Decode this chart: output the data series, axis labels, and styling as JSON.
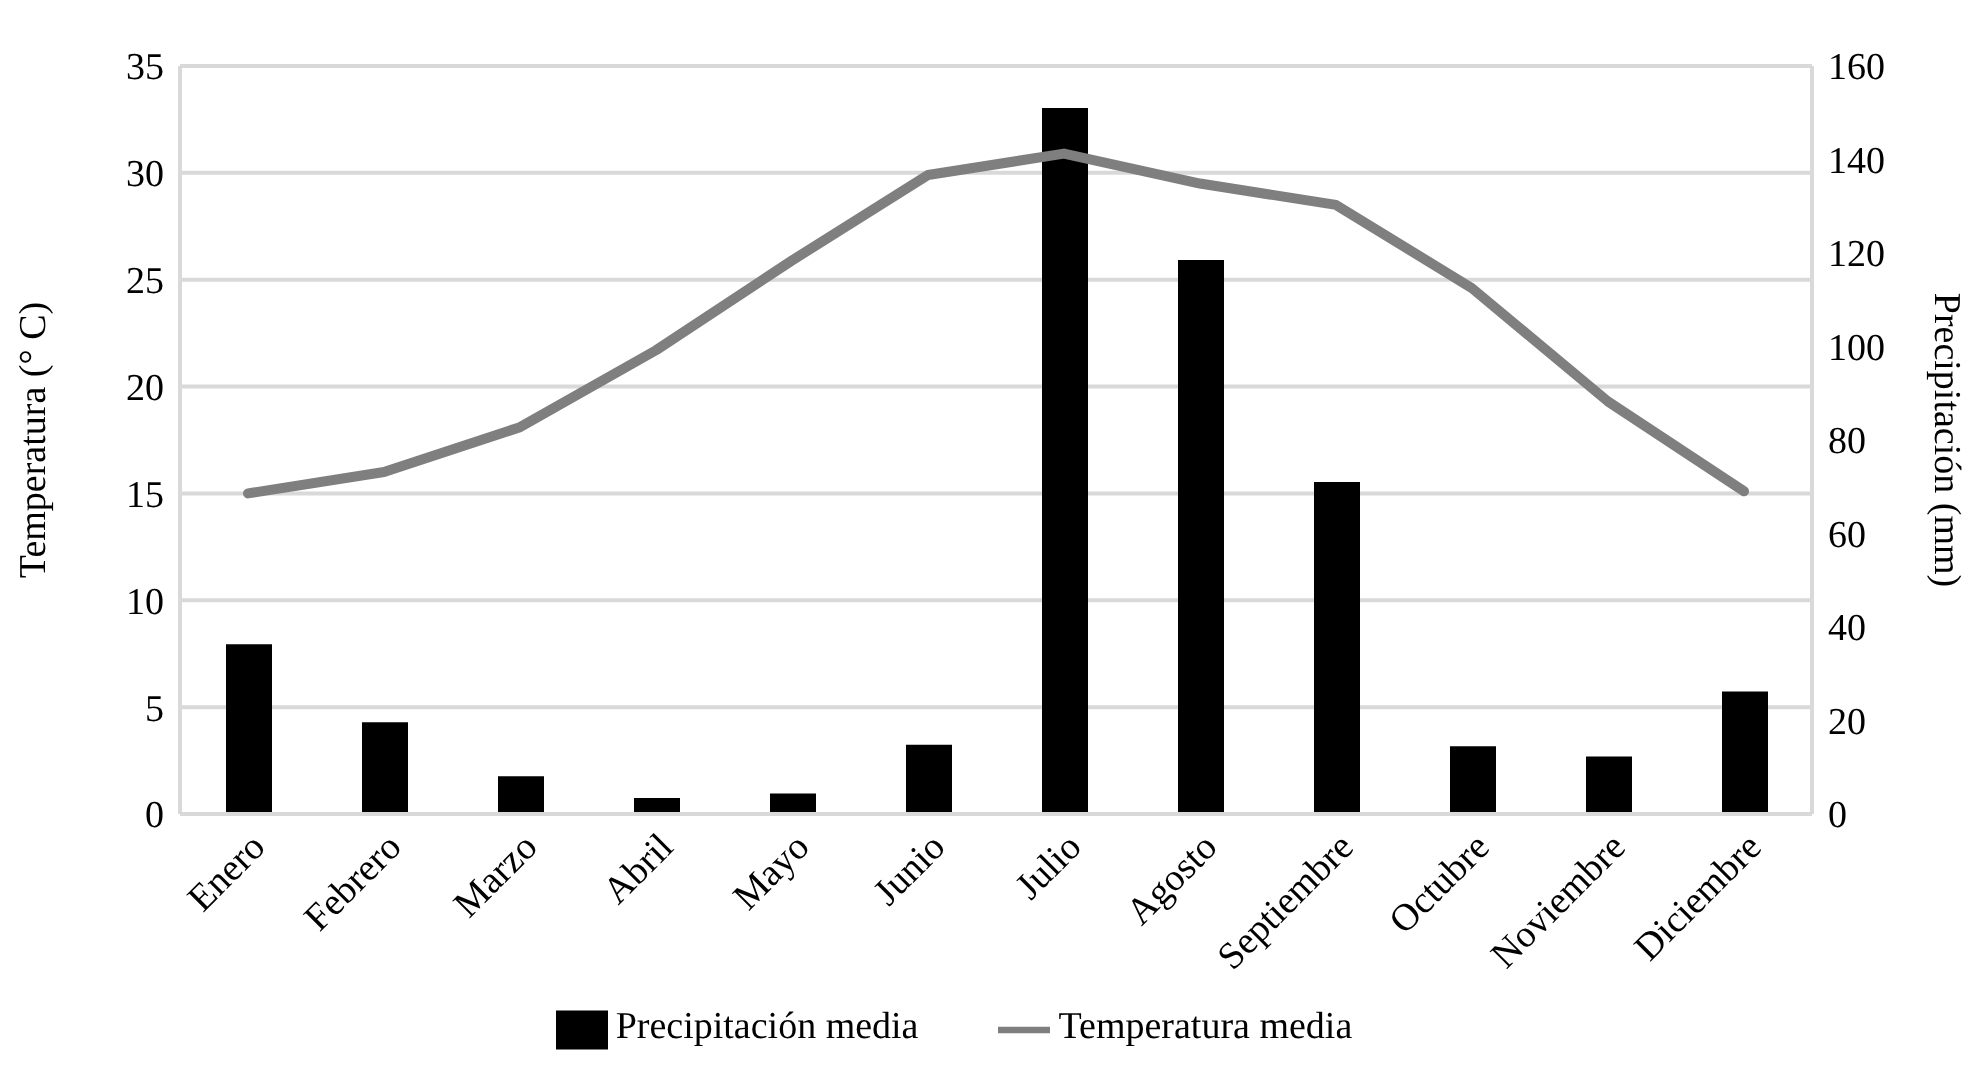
{
  "chart_data": {
    "type": "bar",
    "ylabel": "Temperatura (° C)",
    "y2label": "Precipitación (mm)",
    "categories": [
      "Enero",
      "Febrero",
      "Marzo",
      "Abril",
      "Mayo",
      "Junio",
      "Julio",
      "Agosto",
      "Septiembre",
      "Octubre",
      "Noviembre",
      "Diciembre"
    ],
    "series": [
      {
        "name": "Precipitación media",
        "axis": "y2",
        "color": "#000000",
        "values": [
          36.3,
          19.6,
          8.1,
          3.4,
          4.4,
          14.8,
          151,
          118.5,
          71,
          14.5,
          12.3,
          26.2
        ]
      },
      {
        "name": "Temperatura media",
        "type": "line",
        "color": "#7f7f7f",
        "values": [
          15.0,
          16.0,
          18.1,
          21.7,
          25.9,
          29.9,
          30.9,
          29.5,
          28.5,
          24.6,
          19.3,
          15.1
        ]
      }
    ],
    "ylim": [
      0,
      35
    ],
    "yticks": [
      0,
      5,
      10,
      15,
      20,
      25,
      30,
      35
    ],
    "y2lim": [
      0,
      160
    ],
    "y2ticks": [
      0,
      20,
      40,
      60,
      80,
      100,
      120,
      140,
      160
    ],
    "grid": "y",
    "legend": "bottom",
    "marker": "none",
    "line_style": "solid"
  }
}
